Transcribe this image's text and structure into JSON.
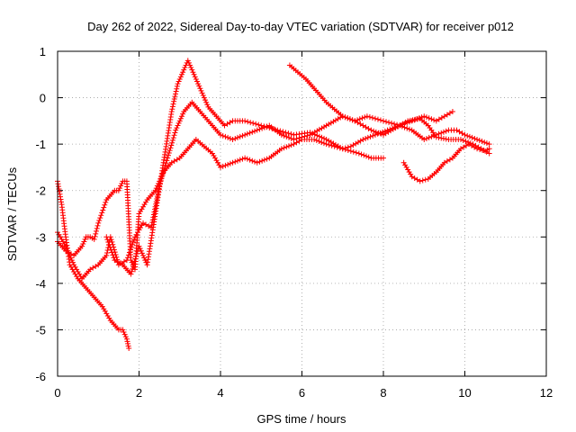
{
  "chart_data": {
    "type": "scatter",
    "title": "Day 262 of 2022, Sidereal Day-to-day VTEC variation (SDTVAR) for receiver p012",
    "xlabel": "GPS time / hours",
    "ylabel": "SDTVAR / TECUs",
    "xlim": [
      0,
      12
    ],
    "ylim": [
      -6,
      1
    ],
    "xticks": [
      0,
      2,
      4,
      6,
      8,
      10,
      12
    ],
    "yticks": [
      -6,
      -5,
      -4,
      -3,
      -2,
      -1,
      0,
      1
    ],
    "grid": true,
    "marker": "+",
    "color": "#ff0000",
    "series": [
      {
        "x": [
          0.0,
          0.1,
          0.2,
          0.3,
          0.5,
          0.7,
          0.9,
          1.1,
          1.3,
          1.5,
          1.6,
          1.7,
          1.75
        ],
        "y": [
          -1.8,
          -2.3,
          -3.0,
          -3.6,
          -3.9,
          -4.1,
          -4.3,
          -4.5,
          -4.8,
          -5.0,
          -5.0,
          -5.2,
          -5.4
        ]
      },
      {
        "x": [
          0.0,
          0.2,
          0.4,
          0.6,
          0.7,
          0.8,
          0.9,
          1.0,
          1.2,
          1.4,
          1.5,
          1.6,
          1.7,
          1.8,
          1.9,
          2.0,
          2.2,
          2.4,
          2.6,
          2.8,
          3.0,
          3.2,
          3.4,
          3.8,
          4.0,
          4.3,
          4.6,
          4.9,
          5.2,
          5.5,
          5.8,
          6.0,
          6.3,
          6.6,
          7.0,
          7.4,
          7.7,
          8.0
        ],
        "y": [
          -3.1,
          -3.3,
          -3.4,
          -3.2,
          -3.0,
          -3.0,
          -3.05,
          -2.7,
          -2.2,
          -2.0,
          -2.0,
          -1.8,
          -1.8,
          -3.5,
          -3.7,
          -2.5,
          -2.2,
          -2.0,
          -1.6,
          -1.4,
          -1.3,
          -1.1,
          -0.9,
          -1.2,
          -1.5,
          -1.4,
          -1.3,
          -1.4,
          -1.3,
          -1.1,
          -1.0,
          -0.9,
          -0.9,
          -1.0,
          -1.1,
          -1.2,
          -1.3,
          -1.3
        ]
      },
      {
        "x": [
          0.0,
          0.2,
          0.4,
          0.6,
          0.8,
          1.0,
          1.2,
          1.3,
          1.5,
          1.7,
          1.9,
          2.1,
          2.3,
          2.5,
          2.7,
          2.9,
          3.1,
          3.3,
          3.5,
          3.8,
          4.0,
          4.3,
          4.6,
          4.9,
          5.2,
          5.5,
          5.8,
          6.2,
          6.6,
          7.0,
          7.3,
          7.6,
          8.0,
          8.4,
          8.7,
          9.0,
          9.3,
          9.6,
          9.8,
          10.0,
          10.3,
          10.6
        ],
        "y": [
          -2.9,
          -3.2,
          -3.6,
          -3.9,
          -3.7,
          -3.6,
          -3.4,
          -3.0,
          -3.6,
          -3.5,
          -3.0,
          -2.7,
          -2.8,
          -1.9,
          -1.3,
          -0.7,
          -0.3,
          -0.1,
          -0.3,
          -0.6,
          -0.8,
          -0.9,
          -0.8,
          -0.7,
          -0.6,
          -0.8,
          -0.9,
          -0.8,
          -0.6,
          -0.4,
          -0.5,
          -0.4,
          -0.5,
          -0.6,
          -0.7,
          -0.9,
          -0.8,
          -0.7,
          -0.7,
          -0.8,
          -0.9,
          -1.0
        ]
      },
      {
        "x": [
          1.2,
          1.4,
          1.6,
          1.8,
          2.0,
          2.2,
          2.4,
          2.6,
          2.8,
          2.95,
          3.1,
          3.2,
          3.35,
          3.5,
          3.7,
          3.9,
          4.1,
          4.3,
          4.6,
          5.0,
          5.4,
          5.8,
          6.2,
          6.6,
          7.0,
          7.2,
          7.5,
          7.8,
          8.1,
          8.4,
          8.7,
          9.0,
          9.3,
          9.5,
          9.7
        ],
        "y": [
          -3.0,
          -3.5,
          -3.6,
          -3.8,
          -3.2,
          -3.6,
          -2.5,
          -1.4,
          -0.3,
          0.3,
          0.6,
          0.8,
          0.5,
          0.2,
          -0.2,
          -0.4,
          -0.6,
          -0.5,
          -0.5,
          -0.6,
          -0.7,
          -0.8,
          -0.75,
          -0.9,
          -1.1,
          -1.05,
          -0.9,
          -0.8,
          -0.7,
          -0.6,
          -0.5,
          -0.4,
          -0.5,
          -0.4,
          -0.3
        ]
      },
      {
        "x": [
          5.7,
          5.9,
          6.1,
          6.3,
          6.6,
          7.0,
          7.3,
          7.5,
          7.7,
          8.0,
          8.3,
          8.6,
          8.9,
          9.1,
          9.3,
          9.6,
          9.9,
          10.2,
          10.4,
          10.6
        ],
        "y": [
          0.7,
          0.55,
          0.4,
          0.2,
          -0.1,
          -0.4,
          -0.5,
          -0.6,
          -0.7,
          -0.8,
          -0.65,
          -0.5,
          -0.45,
          -0.6,
          -0.85,
          -0.9,
          -0.9,
          -1.0,
          -1.1,
          -1.2
        ]
      },
      {
        "x": [
          8.5,
          8.7,
          8.9,
          9.1,
          9.3,
          9.5,
          9.7,
          9.9,
          10.1,
          10.3,
          10.5,
          10.6
        ],
        "y": [
          -1.4,
          -1.7,
          -1.8,
          -1.75,
          -1.6,
          -1.4,
          -1.3,
          -1.1,
          -1.0,
          -1.1,
          -1.15,
          -1.1
        ]
      }
    ]
  }
}
